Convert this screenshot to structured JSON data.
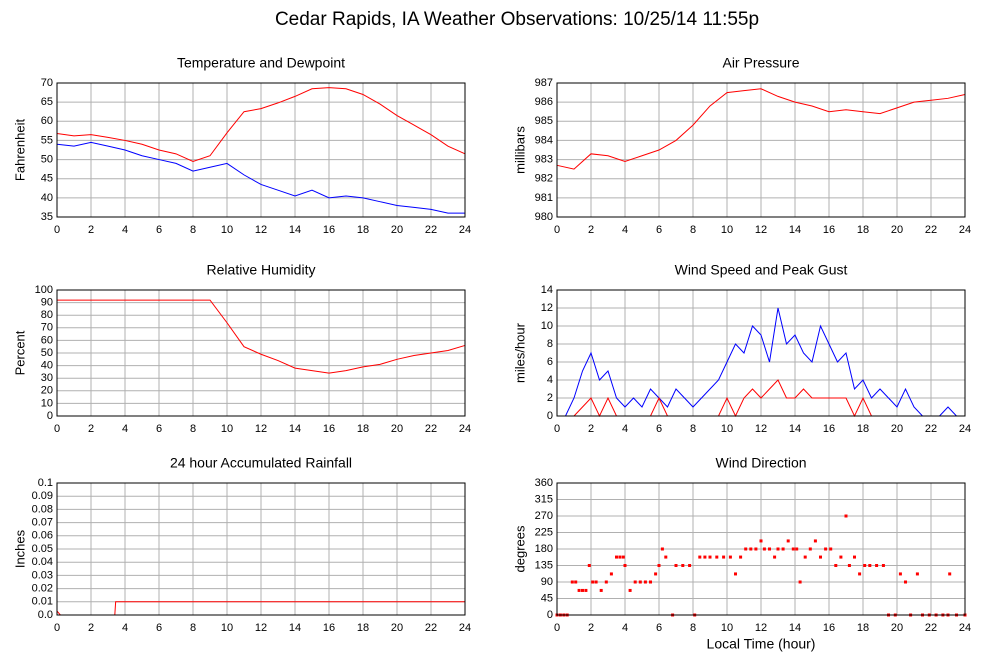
{
  "title": "Cedar Rapids, IA Weather Observations: 10/25/14 11:55p",
  "chart_data": [
    {
      "type": "line",
      "title": "Temperature and Dewpoint",
      "ylabel": "Fahrenheit",
      "x": [
        0,
        1,
        2,
        3,
        4,
        5,
        6,
        7,
        8,
        9,
        10,
        11,
        12,
        13,
        14,
        15,
        16,
        17,
        18,
        19,
        20,
        21,
        22,
        23,
        24
      ],
      "series": [
        {
          "color": "#ff0000",
          "values": [
            56.8,
            56.2,
            56.5,
            55.8,
            55,
            54,
            52.5,
            51.5,
            49.5,
            51,
            57,
            62.5,
            63.3,
            64.8,
            66.5,
            68.5,
            68.8,
            68.5,
            67,
            64.5,
            61.5,
            59,
            56.5,
            53.5,
            51.5
          ]
        },
        {
          "color": "#0000ff",
          "values": [
            54,
            53.5,
            54.5,
            53.5,
            52.5,
            51,
            50,
            49,
            47,
            48,
            49,
            46,
            43.5,
            42,
            40.5,
            42,
            40,
            40.5,
            40,
            39,
            38,
            37.5,
            37,
            36,
            36
          ]
        }
      ],
      "xlim": [
        0,
        24
      ],
      "xticks": [
        0,
        2,
        4,
        6,
        8,
        10,
        12,
        14,
        16,
        18,
        20,
        22,
        24
      ],
      "ylim": [
        35,
        70
      ],
      "yticks": [
        35,
        40,
        45,
        50,
        55,
        60,
        65,
        70
      ],
      "grid": true
    },
    {
      "type": "line",
      "title": "Air Pressure",
      "ylabel": "millibars",
      "x": [
        0,
        1,
        2,
        3,
        4,
        5,
        6,
        7,
        8,
        9,
        10,
        11,
        12,
        13,
        14,
        15,
        16,
        17,
        18,
        19,
        20,
        21,
        22,
        23,
        24
      ],
      "series": [
        {
          "color": "#ff0000",
          "values": [
            982.7,
            982.5,
            983.3,
            983.2,
            982.9,
            983.2,
            983.5,
            984,
            984.8,
            985.8,
            986.5,
            986.6,
            986.7,
            986.3,
            986,
            985.8,
            985.5,
            985.6,
            985.5,
            985.4,
            985.7,
            986,
            986.1,
            986.2,
            986.4
          ]
        }
      ],
      "xlim": [
        0,
        24
      ],
      "xticks": [
        0,
        2,
        4,
        6,
        8,
        10,
        12,
        14,
        16,
        18,
        20,
        22,
        24
      ],
      "ylim": [
        980,
        987
      ],
      "yticks": [
        980,
        981,
        982,
        983,
        984,
        985,
        986,
        987
      ],
      "grid": true
    },
    {
      "type": "line",
      "title": "Relative Humidity",
      "ylabel": "Percent",
      "x": [
        0,
        1,
        2,
        3,
        4,
        5,
        6,
        7,
        8,
        9,
        10,
        11,
        12,
        13,
        14,
        15,
        16,
        17,
        18,
        19,
        20,
        21,
        22,
        23,
        24
      ],
      "series": [
        {
          "color": "#ff0000",
          "values": [
            92,
            92,
            92,
            92,
            92,
            92,
            92,
            92,
            92,
            92,
            74,
            55,
            49,
            44,
            38,
            36,
            34,
            36,
            39,
            41,
            45,
            48,
            50,
            52,
            56
          ]
        }
      ],
      "xlim": [
        0,
        24
      ],
      "xticks": [
        0,
        2,
        4,
        6,
        8,
        10,
        12,
        14,
        16,
        18,
        20,
        22,
        24
      ],
      "ylim": [
        0,
        100
      ],
      "yticks": [
        0,
        10,
        20,
        30,
        40,
        50,
        60,
        70,
        80,
        90,
        100
      ],
      "grid": true
    },
    {
      "type": "line",
      "title": "Wind Speed and Peak Gust",
      "ylabel": "miles/hour",
      "x": [
        0,
        0.5,
        1,
        1.5,
        2,
        2.5,
        3,
        3.5,
        4,
        4.5,
        5,
        5.5,
        6,
        6.5,
        7,
        7.5,
        8,
        8.5,
        9,
        9.5,
        10,
        10.5,
        11,
        11.5,
        12,
        12.5,
        13,
        13.5,
        14,
        14.5,
        15,
        15.5,
        16,
        16.5,
        17,
        17.5,
        18,
        18.5,
        19,
        19.5,
        20,
        20.5,
        21,
        21.5,
        22,
        22.5,
        23,
        23.5,
        24
      ],
      "series": [
        {
          "color": "#0000ff",
          "values": [
            0,
            0,
            2,
            5,
            7,
            4,
            5,
            2,
            1,
            2,
            1,
            3,
            2,
            1,
            3,
            2,
            1,
            2,
            3,
            4,
            6,
            8,
            7,
            10,
            9,
            6,
            12,
            8,
            9,
            7,
            6,
            10,
            8,
            6,
            7,
            3,
            4,
            2,
            3,
            2,
            1,
            3,
            1,
            0,
            0,
            0,
            1,
            0,
            0
          ]
        },
        {
          "color": "#ff0000",
          "values": [
            0,
            0,
            0,
            1,
            2,
            0,
            2,
            0,
            0,
            0,
            0,
            0,
            2,
            0,
            0,
            0,
            0,
            0,
            0,
            0,
            2,
            0,
            2,
            3,
            2,
            3,
            4,
            2,
            2,
            3,
            2,
            2,
            2,
            2,
            2,
            0,
            2,
            0,
            0,
            0,
            0,
            0,
            0,
            0,
            0,
            0,
            0,
            0,
            0
          ]
        }
      ],
      "xlim": [
        0,
        24
      ],
      "xticks": [
        0,
        2,
        4,
        6,
        8,
        10,
        12,
        14,
        16,
        18,
        20,
        22,
        24
      ],
      "ylim": [
        0,
        14
      ],
      "yticks": [
        0,
        2,
        4,
        6,
        8,
        10,
        12,
        14
      ],
      "grid": true
    },
    {
      "type": "line",
      "title": "24 hour Accumulated Rainfall",
      "ylabel": "Inches",
      "x": [
        0,
        0.2,
        3.4,
        3.45,
        24
      ],
      "series": [
        {
          "color": "#ff0000",
          "values": [
            0.003,
            0,
            0,
            0.01,
            0.01
          ]
        }
      ],
      "xlim": [
        0,
        24
      ],
      "xticks": [
        0,
        2,
        4,
        6,
        8,
        10,
        12,
        14,
        16,
        18,
        20,
        22,
        24
      ],
      "ylim": [
        0,
        0.1
      ],
      "yticks": [
        {
          "value": 0,
          "label": "0.0"
        },
        0.01,
        0.02,
        0.03,
        0.04,
        0.05,
        0.06,
        0.07,
        0.08,
        0.09,
        {
          "value": 0.1,
          "label": "0.1"
        }
      ],
      "grid": true
    },
    {
      "type": "scatter",
      "title": "Wind Direction",
      "ylabel": "degrees",
      "xlabel": "Local Time (hour)",
      "x": [
        0,
        0.2,
        0.4,
        0.6,
        0.9,
        1.1,
        1.3,
        1.5,
        1.7,
        1.9,
        2.1,
        2.3,
        2.6,
        2.9,
        3.2,
        3.5,
        3.7,
        3.9,
        4.0,
        4.3,
        4.6,
        4.9,
        5.2,
        5.5,
        5.8,
        6.0,
        6.2,
        6.4,
        6.8,
        7.0,
        7.4,
        7.8,
        8.1,
        8.4,
        8.7,
        9.0,
        9.4,
        9.8,
        10.2,
        10.5,
        10.8,
        11.1,
        11.4,
        11.7,
        12.0,
        12.2,
        12.5,
        12.8,
        13.0,
        13.3,
        13.6,
        13.9,
        14.1,
        14.3,
        14.6,
        14.9,
        15.2,
        15.5,
        15.8,
        16.1,
        16.4,
        16.7,
        17.0,
        17.2,
        17.5,
        17.8,
        18.1,
        18.4,
        18.8,
        19.2,
        19.5,
        19.9,
        20.2,
        20.5,
        20.8,
        21.2,
        21.5,
        21.9,
        22.3,
        22.7,
        23.0,
        23.1,
        23.5,
        24.0
      ],
      "series": [
        {
          "color": "#ff0000",
          "values": [
            0,
            0,
            0,
            0,
            90,
            90,
            67,
            67,
            67,
            135,
            90,
            90,
            67,
            90,
            112,
            158,
            158,
            158,
            135,
            67,
            90,
            90,
            90,
            90,
            112,
            135,
            180,
            158,
            0,
            135,
            135,
            135,
            0,
            158,
            158,
            158,
            158,
            158,
            158,
            112,
            158,
            180,
            180,
            180,
            202,
            180,
            180,
            158,
            180,
            180,
            202,
            180,
            180,
            90,
            158,
            180,
            202,
            158,
            180,
            180,
            135,
            158,
            270,
            135,
            158,
            112,
            135,
            135,
            135,
            135,
            0,
            0,
            112,
            90,
            0,
            112,
            0,
            0,
            0,
            0,
            0,
            112,
            0,
            0
          ]
        }
      ],
      "xlim": [
        0,
        24
      ],
      "xticks": [
        0,
        2,
        4,
        6,
        8,
        10,
        12,
        14,
        16,
        18,
        20,
        22,
        24
      ],
      "ylim": [
        0,
        360
      ],
      "yticks": [
        0,
        45,
        90,
        135,
        180,
        225,
        270,
        315,
        360
      ],
      "grid": true
    }
  ]
}
